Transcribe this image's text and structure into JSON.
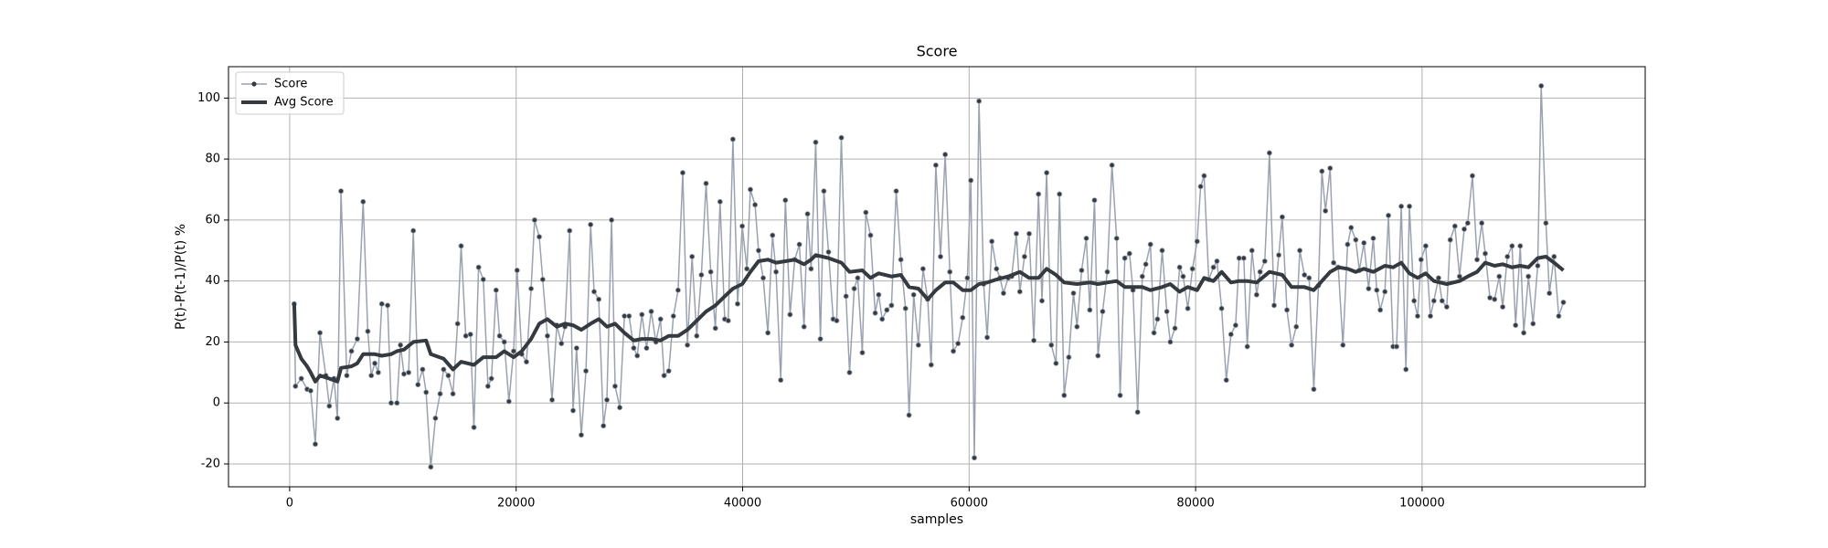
{
  "chart_data": {
    "type": "line",
    "title": "Score",
    "xlabel": "samples",
    "ylabel": "P(t)-P(t-1)/P(t) %",
    "xlim": [
      -5400,
      119700
    ],
    "ylim": [
      -27.5,
      110.3
    ],
    "xticks": [
      0,
      20000,
      40000,
      60000,
      80000,
      100000
    ],
    "yticks": [
      -20,
      0,
      20,
      40,
      60,
      80,
      100
    ],
    "grid": true,
    "legend": "upper left",
    "series": [
      {
        "name": "Score",
        "color": "#9aa2b1",
        "marker_color": "#343a40",
        "marker": true,
        "x": [
          400,
          515,
          1030,
          1545,
          1854,
          2266,
          2678,
          3193,
          3502,
          3914,
          4223,
          4532,
          5047,
          5459,
          5974,
          6489,
          6901,
          7210,
          7519,
          7828,
          8137,
          8652,
          8961,
          9476,
          9785,
          10094,
          10506,
          10918,
          11330,
          11742,
          12051,
          12463,
          12875,
          13287,
          13596,
          14008,
          14420,
          14832,
          15141,
          15553,
          15965,
          16274,
          16686,
          17098,
          17510,
          17819,
          18231,
          18540,
          18952,
          19364,
          19776,
          20085,
          20497,
          20909,
          21321,
          21630,
          22042,
          22351,
          22763,
          23175,
          23587,
          23999,
          24308,
          24720,
          25029,
          25338,
          25750,
          26162,
          26574,
          26883,
          27295,
          27707,
          28016,
          28428,
          28737,
          29149,
          29561,
          29973,
          30385,
          30694,
          31106,
          31518,
          31930,
          32342,
          32754,
          33063,
          33475,
          33887,
          34299,
          34711,
          35123,
          35535,
          35947,
          36359,
          36771,
          37183,
          37595,
          38007,
          38419,
          38728,
          39140,
          39552,
          39964,
          40376,
          40685,
          41097,
          41406,
          41818,
          42230,
          42642,
          42951,
          43363,
          43775,
          44187,
          44599,
          45011,
          45423,
          45732,
          46041,
          46453,
          46865,
          47174,
          47586,
          47998,
          48307,
          48719,
          49131,
          49440,
          49852,
          50161,
          50573,
          50882,
          51294,
          51706,
          52015,
          52324,
          52736,
          53148,
          53560,
          53972,
          54384,
          54693,
          55105,
          55517,
          55929,
          56341,
          56650,
          57062,
          57474,
          57886,
          58298,
          58607,
          59019,
          59431,
          59843,
          60152,
          60461,
          60873,
          61285,
          61594,
          62006,
          62418,
          62727,
          63036,
          63448,
          63757,
          64169,
          64478,
          64890,
          65302,
          65714,
          66126,
          66435,
          66847,
          67259,
          67671,
          67980,
          68392,
          68804,
          69216,
          69525,
          69937,
          70349,
          70658,
          71070,
          71379,
          71791,
          72203,
          72615,
          73027,
          73336,
          73748,
          74160,
          74469,
          74881,
          75293,
          75602,
          76014,
          76323,
          76632,
          77044,
          77456,
          77765,
          78177,
          78589,
          78898,
          79310,
          79722,
          80134,
          80443,
          80752,
          81164,
          81576,
          81885,
          82297,
          82709,
          83121,
          83533,
          83842,
          84254,
          84563,
          84975,
          85387,
          85696,
          86108,
          86520,
          86932,
          87344,
          87653,
          88065,
          88477,
          88889,
          89198,
          89610,
          90022,
          90434,
          90846,
          91155,
          91464,
          91876,
          92185,
          92597,
          93009,
          93421,
          93730,
          94142,
          94451,
          94863,
          95275,
          95687,
          95996,
          96305,
          96717,
          97026,
          97438,
          97747,
          98159,
          98571,
          98880,
          99292,
          99601,
          99910,
          100322,
          100734,
          101043,
          101455,
          101764,
          102176,
          102485,
          102897,
          103309,
          103721,
          104030,
          104442,
          104854,
          105266,
          105575,
          105987,
          106399,
          106811,
          107120,
          107532,
          107944,
          108253,
          108665,
          108974,
          109386,
          109798,
          110210,
          110519,
          110931,
          111240,
          111652,
          112064,
          112476
        ],
        "values": [
          32.5,
          5.5,
          8,
          4.5,
          4,
          -13.5,
          23,
          9,
          -1,
          8,
          -5,
          69.5,
          9,
          17,
          21,
          66,
          23.5,
          9,
          13,
          10,
          32.5,
          32,
          0,
          0,
          19,
          9.5,
          10,
          56.5,
          6,
          11,
          3.5,
          -21,
          -5,
          3,
          11,
          9,
          3,
          26,
          51.5,
          22,
          22.5,
          -8,
          44.5,
          40.5,
          5.5,
          8,
          37,
          22,
          20,
          0.5,
          17,
          43.5,
          16,
          13.5,
          37.5,
          60,
          54.5,
          40.5,
          22,
          1,
          25.5,
          19.5,
          25,
          56.5,
          -2.5,
          18,
          -10.5,
          10.5,
          58.5,
          36.5,
          34,
          -7.5,
          1,
          60,
          5.5,
          -1.5,
          28.5,
          28.5,
          18,
          15.5,
          29,
          18,
          30,
          20,
          27.5,
          9,
          10.5,
          28.5,
          37,
          75.5,
          19,
          48,
          22,
          42,
          72,
          43,
          24.5,
          66,
          27.5,
          27,
          86.5,
          32.5,
          58,
          44,
          70,
          65,
          50,
          41,
          23,
          55,
          43,
          7.5,
          66.5,
          29,
          47,
          52,
          25,
          62,
          44,
          85.5,
          21,
          69.5,
          49.5,
          27.5,
          27,
          87,
          35,
          10,
          37.5,
          41,
          16.5,
          62.5,
          55,
          29.5,
          35.5,
          27.5,
          30.5,
          32,
          69.5,
          47,
          31,
          -4,
          35.5,
          19,
          44,
          34,
          12.5,
          78,
          48,
          81.5,
          43,
          17,
          19.5,
          28,
          41,
          73,
          -18,
          99,
          39,
          21.5,
          53,
          44,
          41,
          36,
          41,
          41.5,
          55.5,
          36.5,
          48,
          55.5,
          20.5,
          68.5,
          33.5,
          75.5,
          19,
          13,
          68.5,
          2.5,
          15,
          36,
          25,
          43.5,
          54,
          30.5,
          66.5,
          15.5,
          30,
          43,
          78,
          54,
          2.5,
          47.5,
          49,
          37,
          -3,
          41.5,
          45.5,
          52,
          23,
          27.5,
          50,
          30,
          20,
          24.5,
          44.5,
          41.5,
          31,
          44,
          53,
          71,
          74.5,
          40.5,
          44.5,
          46.5,
          31,
          7.5,
          22.5,
          25.5,
          47.5,
          47.5,
          18.5,
          50,
          35.5,
          43,
          46.5,
          82,
          32,
          48.5,
          61,
          30.5,
          19,
          25,
          50,
          42,
          41,
          4.5,
          38.5,
          76,
          63,
          77,
          46,
          44.5,
          19,
          52,
          57.5,
          53.5,
          43.5,
          52.5,
          37.5,
          54,
          37,
          30.5,
          36.5,
          61.5,
          18.5,
          18.5,
          64.5,
          11,
          64.5,
          33.5,
          28.5,
          47,
          51.5,
          28.5,
          33.5,
          41,
          33.5,
          31.5,
          53.5,
          58,
          41.5,
          57,
          59,
          74.5,
          47,
          59,
          49,
          34.5,
          34,
          41.5,
          31.5,
          48,
          51.5,
          25.5,
          51.5,
          23,
          41.5,
          26,
          45,
          104,
          59,
          36,
          48,
          28.5,
          33
        ]
      },
      {
        "name": "Avg Score",
        "color": "#343a40",
        "marker": false,
        "x": [
          400,
          515,
          1030,
          1545,
          1854,
          2266,
          2678,
          3502,
          4223,
          4532,
          5459,
          5974,
          6489,
          7519,
          8137,
          8961,
          9476,
          10094,
          10918,
          12051,
          12463,
          13596,
          14420,
          15141,
          16274,
          17098,
          18231,
          18952,
          19776,
          20497,
          21321,
          22042,
          22763,
          23587,
          24308,
          25029,
          25750,
          26574,
          27295,
          28016,
          28737,
          29561,
          30385,
          31106,
          31930,
          32754,
          33475,
          34299,
          35123,
          35947,
          36771,
          37595,
          38419,
          39140,
          39964,
          40685,
          41406,
          42230,
          42951,
          43775,
          44599,
          45423,
          46041,
          46453,
          47586,
          48719,
          49440,
          50573,
          51294,
          52015,
          53148,
          53972,
          54693,
          55517,
          56341,
          57062,
          57886,
          58607,
          59431,
          60152,
          60873,
          61594,
          62418,
          63448,
          64478,
          65302,
          66126,
          66847,
          67671,
          68392,
          69525,
          70658,
          71379,
          72203,
          73027,
          73748,
          74469,
          75293,
          76014,
          77044,
          77765,
          78589,
          79310,
          80134,
          80752,
          81576,
          82297,
          83121,
          83842,
          84563,
          85387,
          86520,
          87653,
          88477,
          89610,
          90434,
          91155,
          91876,
          92597,
          93421,
          94142,
          94863,
          95687,
          96717,
          97438,
          98159,
          98880,
          99601,
          100322,
          101043,
          102176,
          103309,
          104030,
          104854,
          105575,
          106399,
          107120,
          107944,
          108665,
          109386,
          110210,
          110931,
          111652,
          112476
        ],
        "values": [
          32.5,
          19,
          14.5,
          12,
          10,
          7,
          9,
          8,
          7,
          11.5,
          12,
          13,
          16,
          16,
          15.5,
          16,
          17,
          17.5,
          20,
          20.5,
          16,
          14.5,
          11,
          13.5,
          12.5,
          15,
          15,
          17,
          15,
          17,
          21,
          26,
          27.5,
          25,
          26,
          25.5,
          24,
          26,
          27.5,
          25,
          26,
          23,
          20.5,
          21,
          21,
          20.5,
          22,
          22,
          24,
          27,
          30,
          32,
          35,
          37.5,
          39,
          43,
          46.5,
          47,
          46,
          46.5,
          47,
          45.5,
          47,
          48.5,
          47.5,
          46,
          43,
          43.5,
          41,
          42.5,
          41.5,
          42,
          38,
          37.5,
          34,
          37,
          39.5,
          39.5,
          37,
          37,
          39,
          39.5,
          40.5,
          41.5,
          43,
          41,
          41,
          44,
          42,
          39.5,
          39,
          39.5,
          39,
          39.5,
          40,
          38,
          38,
          38,
          37,
          38,
          39,
          36.5,
          38,
          37,
          41,
          40,
          43,
          39.5,
          40,
          40,
          39.5,
          43,
          42,
          38,
          38,
          37,
          40,
          43,
          44.5,
          44,
          43,
          44,
          43,
          45,
          44.5,
          46,
          42.5,
          41,
          42.5,
          40,
          39,
          40,
          41.5,
          43,
          46,
          45,
          45.5,
          44.5,
          45,
          44.5,
          47.5,
          48,
          46,
          43.5
        ]
      }
    ]
  }
}
